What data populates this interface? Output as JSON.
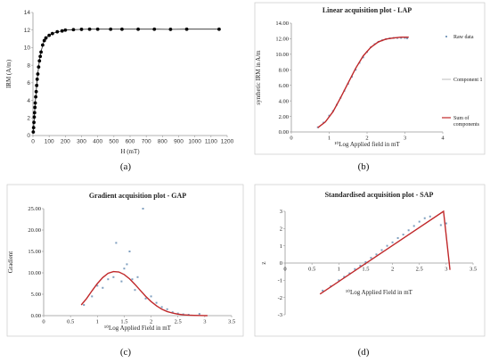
{
  "panel_labels": [
    "(a)",
    "(b)",
    "(c)",
    "(d)"
  ],
  "chart_data": [
    {
      "type": "scatter",
      "panel": "(a)",
      "title": "",
      "xlabel": "H (mT)",
      "ylabel": "IRM (A/m)",
      "xlim": [
        0,
        1200
      ],
      "ylim": [
        0,
        14
      ],
      "xticks": [
        0,
        100,
        200,
        300,
        400,
        500,
        600,
        700,
        800,
        900,
        1000,
        1100,
        1200
      ],
      "yticks": [
        0,
        2,
        4,
        6,
        8,
        10,
        12,
        14
      ],
      "grid": false,
      "marker_color": "#000000",
      "line_color": "#000000",
      "series": [
        {
          "name": "",
          "x": [
            2,
            4,
            6,
            8,
            10,
            12,
            14,
            17,
            20,
            23,
            26,
            30,
            35,
            40,
            45,
            50,
            60,
            70,
            80,
            100,
            120,
            150,
            180,
            200,
            250,
            300,
            350,
            400,
            480,
            550,
            650,
            750,
            850,
            950,
            1150
          ],
          "y": [
            0.4,
            0.9,
            1.5,
            2.1,
            2.6,
            3.2,
            3.7,
            4.4,
            5.0,
            5.7,
            6.4,
            7.0,
            7.8,
            8.5,
            9.0,
            9.5,
            10.3,
            10.8,
            11.1,
            11.4,
            11.6,
            11.8,
            11.9,
            12.0,
            12.05,
            12.08,
            12.1,
            12.1,
            12.1,
            12.1,
            12.1,
            12.1,
            12.08,
            12.1,
            12.1
          ]
        }
      ]
    },
    {
      "type": "line",
      "panel": "(b)",
      "title": "Linear acquisition plot - LAP",
      "xlabel": "¹⁰Log Applied field in mT",
      "ylabel": "synthetic IRM in A/m",
      "xlim": [
        0,
        4
      ],
      "ylim": [
        0,
        14
      ],
      "xticks": [
        0,
        1,
        2,
        3,
        4
      ],
      "yticks": [
        "0.00",
        "2.00",
        "4.00",
        "6.00",
        "8.00",
        "10.00",
        "12.00",
        "14.00"
      ],
      "grid": false,
      "legend_position": "right",
      "series": [
        {
          "name": "Raw data",
          "style": "markers",
          "color": "#7f9fbf",
          "x": [
            0.7,
            0.85,
            1.0,
            1.1,
            1.2,
            1.3,
            1.4,
            1.5,
            1.6,
            1.7,
            1.8,
            1.9,
            2.0,
            2.1,
            2.2,
            2.3,
            2.4,
            2.5,
            2.6,
            2.7,
            2.8,
            2.9,
            3.0,
            3.06
          ],
          "y": [
            0.6,
            1.2,
            2.1,
            2.7,
            3.5,
            4.4,
            5.3,
            6.2,
            7.1,
            8.0,
            8.9,
            9.6,
            10.3,
            10.9,
            11.3,
            11.6,
            11.8,
            11.95,
            12.05,
            12.1,
            12.1,
            12.1,
            12.1,
            12.05
          ]
        },
        {
          "name": "Component 1",
          "style": "line",
          "color": "#c8c8c8",
          "x": [
            0.7,
            0.9,
            1.1,
            1.3,
            1.5,
            1.7,
            1.9,
            2.1,
            2.3,
            2.5,
            2.7,
            2.9,
            3.1
          ],
          "y": [
            0.55,
            1.3,
            2.6,
            4.4,
            6.3,
            8.2,
            9.8,
            10.9,
            11.6,
            11.95,
            12.1,
            12.2,
            12.2
          ]
        },
        {
          "name": "Sum of components",
          "style": "line",
          "color": "#c0282a",
          "x": [
            0.7,
            0.9,
            1.1,
            1.3,
            1.5,
            1.7,
            1.9,
            2.1,
            2.3,
            2.5,
            2.7,
            2.9,
            3.1
          ],
          "y": [
            0.55,
            1.3,
            2.6,
            4.4,
            6.3,
            8.2,
            9.8,
            10.9,
            11.6,
            11.95,
            12.1,
            12.2,
            12.2
          ]
        }
      ]
    },
    {
      "type": "scatter",
      "panel": "(c)",
      "title": "Gradient acquisition plot - GAP",
      "xlabel": "¹⁰Log Applied Field in mT",
      "ylabel": "Gradient",
      "xlim": [
        0,
        3.5
      ],
      "ylim": [
        0,
        25
      ],
      "xticks": [
        0,
        0.5,
        1,
        1.5,
        2,
        2.5,
        3,
        3.5
      ],
      "yticks": [
        "0.00",
        "5.00",
        "10.00",
        "15.00",
        "20.00",
        "25.00"
      ],
      "grid": false,
      "series": [
        {
          "name": "",
          "style": "markers",
          "color": "#7f9fbf",
          "x": [
            0.75,
            0.9,
            1.0,
            1.1,
            1.2,
            1.3,
            1.35,
            1.45,
            1.5,
            1.55,
            1.6,
            1.65,
            1.7,
            1.75,
            1.85,
            1.9,
            2.0,
            2.1,
            2.2,
            2.3,
            2.4,
            2.5,
            2.6,
            2.7,
            2.9
          ],
          "y": [
            2.5,
            4.5,
            7.0,
            6.5,
            8.5,
            9.0,
            17.0,
            8.0,
            11.0,
            12.0,
            15.0,
            8.5,
            6.0,
            9.0,
            25.0,
            4.0,
            4.5,
            3.0,
            2.0,
            1.5,
            0.8,
            0.5,
            0.3,
            0.2,
            0.4
          ]
        },
        {
          "name": "",
          "style": "line",
          "color": "#c0282a",
          "x": [
            0.7,
            0.8,
            0.9,
            1.0,
            1.1,
            1.2,
            1.3,
            1.4,
            1.5,
            1.6,
            1.7,
            1.8,
            1.9,
            2.0,
            2.1,
            2.2,
            2.3,
            2.4,
            2.5,
            2.6,
            2.7,
            2.8,
            2.9,
            3.0,
            3.05
          ],
          "y": [
            2.5,
            4.0,
            5.8,
            7.5,
            8.9,
            9.9,
            10.3,
            10.2,
            9.6,
            8.6,
            7.3,
            5.9,
            4.5,
            3.3,
            2.3,
            1.5,
            0.95,
            0.6,
            0.35,
            0.2,
            0.12,
            0.07,
            0.04,
            0.02,
            0.0
          ]
        }
      ]
    },
    {
      "type": "line",
      "panel": "(d)",
      "title": "Standardised acquisition plot - SAP",
      "xlabel": "¹⁰Log Applied Field in mT",
      "ylabel": "z",
      "xlim": [
        0,
        3.5
      ],
      "ylim": [
        -3,
        3
      ],
      "xticks": [
        0,
        0.5,
        1,
        1.5,
        2,
        2.5,
        3,
        3.5
      ],
      "yticks": [
        -3,
        -2,
        -1,
        0,
        1,
        2,
        3
      ],
      "grid": false,
      "series": [
        {
          "name": "",
          "style": "markers",
          "color": "#7f9fbf",
          "x": [
            0.7,
            0.85,
            1.0,
            1.1,
            1.2,
            1.3,
            1.4,
            1.5,
            1.6,
            1.7,
            1.8,
            1.9,
            2.0,
            2.1,
            2.2,
            2.3,
            2.4,
            2.5,
            2.6,
            2.7,
            2.9,
            3.0
          ],
          "y": [
            -1.6,
            -1.35,
            -1.0,
            -0.8,
            -0.6,
            -0.35,
            -0.15,
            0.05,
            0.3,
            0.5,
            0.75,
            1.0,
            1.2,
            1.45,
            1.65,
            1.9,
            2.15,
            2.4,
            2.6,
            2.7,
            2.2,
            2.3
          ]
        },
        {
          "name": "",
          "style": "line",
          "color": "#c0282a",
          "x": [
            0.65,
            2.95,
            3.07
          ],
          "y": [
            -1.8,
            3.0,
            -0.4
          ]
        }
      ]
    }
  ]
}
